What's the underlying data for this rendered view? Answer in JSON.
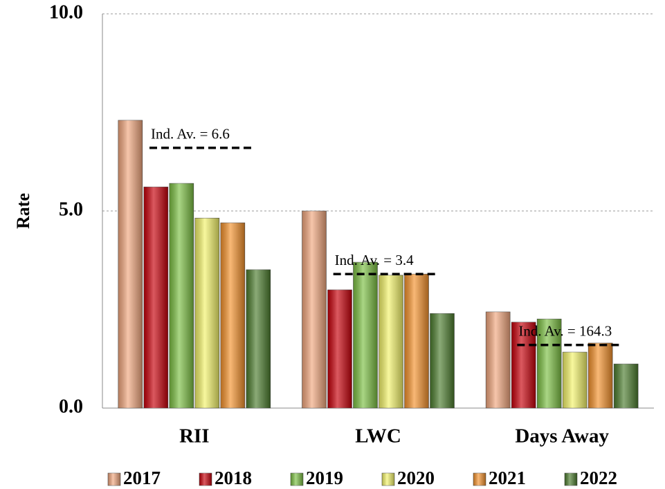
{
  "chart_data": {
    "type": "bar",
    "y_label": "Rate",
    "categories": [
      "RII",
      "LWC",
      "Days Away"
    ],
    "series": [
      {
        "name": "2017",
        "color": "#f2a77e",
        "values": [
          7.3,
          5.0,
          2.44
        ]
      },
      {
        "name": "2018",
        "color": "#c8000a",
        "values": [
          5.61,
          3.0,
          2.18
        ]
      },
      {
        "name": "2019",
        "color": "#7cc043",
        "values": [
          5.7,
          3.7,
          2.26
        ]
      },
      {
        "name": "2020",
        "color": "#f4f46a",
        "values": [
          4.82,
          3.37,
          1.42
        ]
      },
      {
        "name": "2021",
        "color": "#f5922c",
        "values": [
          4.7,
          3.4,
          1.65
        ]
      },
      {
        "name": "2022",
        "color": "#4c7d2e",
        "values": [
          3.51,
          2.4,
          1.12
        ]
      }
    ],
    "ylim": [
      0,
      10
    ],
    "yticks": [
      {
        "value": 0,
        "label": "0.0"
      },
      {
        "value": 5,
        "label": "5.0"
      },
      {
        "value": 10,
        "label": "10.0"
      }
    ],
    "grid": true,
    "annotations": [
      {
        "text": "Ind. Av. = 6.6",
        "category": "RII",
        "y": 6.6
      },
      {
        "text": "Ind. Av. = 3.4",
        "category": "LWC",
        "y": 3.4
      },
      {
        "text": "Ind. Av. = 164.3",
        "category": "Days Away",
        "y": 1.6
      }
    ]
  }
}
